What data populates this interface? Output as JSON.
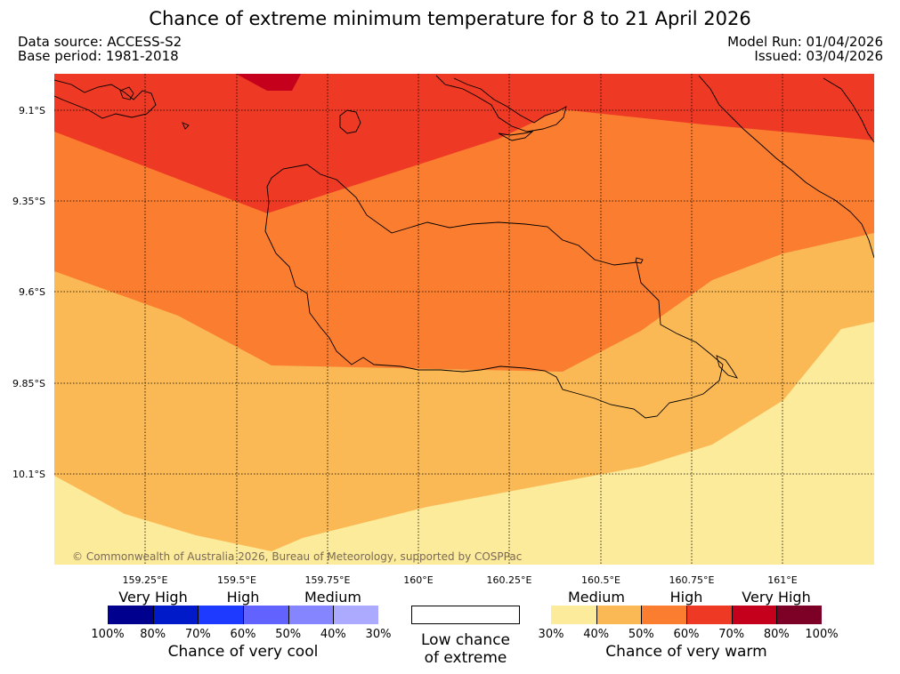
{
  "title": "Chance of extreme minimum temperature for 8 to 21 April 2026",
  "data_source": "Data source: ACCESS-S2",
  "base_period": "Base period: 1981-2018",
  "model_run": "Model Run: 01/04/2026",
  "issued": "Issued: 03/04/2026",
  "copyright": "© Commonwealth of Australia 2026, Bureau of Meteorology, supported by COSPPac",
  "map": {
    "lat_labels": [
      "9.1°S",
      "9.35°S",
      "9.6°S",
      "9.85°S",
      "10.1°S"
    ],
    "lon_labels": [
      "159.25°E",
      "159.5°E",
      "159.75°E",
      "160°E",
      "160.25°E",
      "160.5°E",
      "160.75°E",
      "161°E"
    ],
    "zone_colors": {
      "30-40": "#fdeb9c",
      "40-50": "#fbb955",
      "50-60": "#fb7d30",
      "60-70": "#ee3a25",
      "70-80": "#c4001c"
    }
  },
  "legend": {
    "cool": {
      "categories": [
        "Very High",
        "High",
        "Medium"
      ],
      "colors": [
        "#00008f",
        "#0019c9",
        "#1e3aff",
        "#6262ff",
        "#8585ff",
        "#abaaff"
      ],
      "ticks": [
        "100%",
        "80%",
        "70%",
        "60%",
        "50%",
        "40%",
        "30%"
      ],
      "title": "Chance of very cool"
    },
    "low": {
      "line1": "Low chance",
      "line2": "of extreme",
      "color": "#ffffff"
    },
    "warm": {
      "categories": [
        "Medium",
        "High",
        "Very High"
      ],
      "colors": [
        "#fdeb9c",
        "#fbb955",
        "#fb7d30",
        "#ee3a25",
        "#c4001c",
        "#7d0027"
      ],
      "ticks": [
        "30%",
        "40%",
        "50%",
        "60%",
        "70%",
        "80%",
        "100%"
      ],
      "title": "Chance of very warm"
    }
  }
}
